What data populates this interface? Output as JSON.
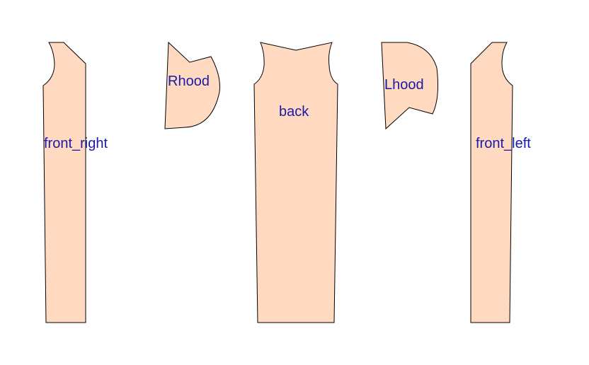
{
  "colors": {
    "piece_fill": "#ffdac1",
    "outline": "#000000",
    "label": "#1a1aa8",
    "background": "#ffffff"
  },
  "pieces": {
    "front_right": {
      "label": "front_right"
    },
    "rhood": {
      "label": "Rhood"
    },
    "back": {
      "label": "back"
    },
    "lhood": {
      "label": "Lhood"
    },
    "front_left": {
      "label": "front_left"
    }
  }
}
